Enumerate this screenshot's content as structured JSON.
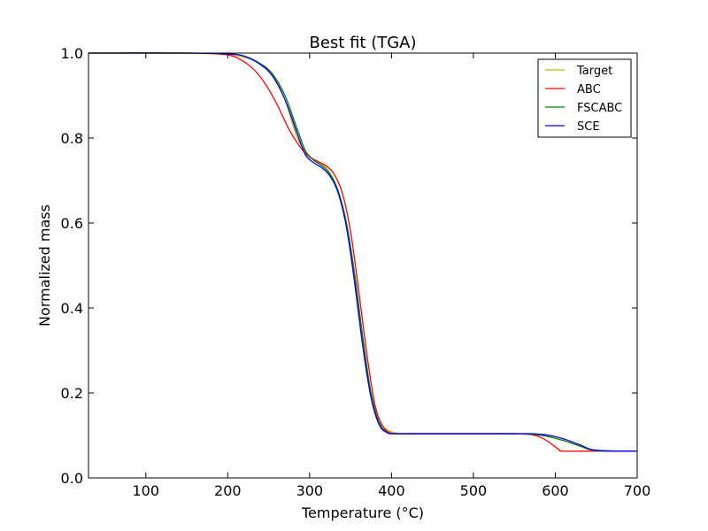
{
  "chart_data": {
    "type": "line",
    "title": "Best fit (TGA)",
    "xlabel": "Temperature (°C)",
    "ylabel": "Normalized mass",
    "xlim": [
      30,
      700
    ],
    "ylim": [
      0.0,
      1.0
    ],
    "xticks": [
      100,
      200,
      300,
      400,
      500,
      600,
      700
    ],
    "yticks": [
      0.0,
      0.2,
      0.4,
      0.6,
      0.8,
      1.0
    ],
    "xtick_labels": [
      "100",
      "200",
      "300",
      "400",
      "500",
      "600",
      "700"
    ],
    "ytick_labels": [
      "0.0",
      "0.2",
      "0.4",
      "0.6",
      "0.8",
      "1.0"
    ],
    "grid": false,
    "legend_position": "top-right",
    "series": [
      {
        "name": "Target",
        "color": "#c8b400",
        "x": [
          30,
          150,
          200,
          220,
          240,
          255,
          270,
          285,
          300,
          310,
          320,
          330,
          340,
          350,
          360,
          370,
          380,
          390,
          400,
          410,
          420,
          450,
          500,
          550,
          570,
          590,
          610,
          630,
          650,
          700
        ],
        "y": [
          1.0,
          1.0,
          0.996,
          0.99,
          0.975,
          0.95,
          0.89,
          0.8,
          0.755,
          0.745,
          0.73,
          0.7,
          0.64,
          0.53,
          0.38,
          0.24,
          0.15,
          0.12,
          0.108,
          0.105,
          0.104,
          0.104,
          0.104,
          0.104,
          0.103,
          0.098,
          0.088,
          0.075,
          0.064,
          0.063
        ]
      },
      {
        "name": "ABC",
        "color": "#ff0000",
        "x": [
          30,
          150,
          190,
          210,
          230,
          245,
          260,
          275,
          290,
          300,
          310,
          320,
          330,
          340,
          350,
          360,
          370,
          380,
          390,
          400,
          410,
          450,
          500,
          550,
          570,
          580,
          590,
          600,
          605,
          610,
          650,
          700
        ],
        "y": [
          1.0,
          1.0,
          0.998,
          0.99,
          0.965,
          0.93,
          0.88,
          0.82,
          0.775,
          0.755,
          0.745,
          0.735,
          0.715,
          0.67,
          0.58,
          0.44,
          0.29,
          0.17,
          0.12,
          0.105,
          0.104,
          0.104,
          0.104,
          0.104,
          0.102,
          0.097,
          0.087,
          0.073,
          0.066,
          0.063,
          0.063,
          0.063
        ]
      },
      {
        "name": "FSCABC",
        "color": "#008000",
        "x": [
          30,
          150,
          200,
          220,
          240,
          255,
          270,
          285,
          295,
          305,
          315,
          325,
          335,
          345,
          355,
          365,
          375,
          385,
          395,
          405,
          420,
          450,
          500,
          550,
          570,
          590,
          610,
          630,
          650,
          700
        ],
        "y": [
          1.0,
          1.0,
          0.998,
          0.993,
          0.975,
          0.95,
          0.9,
          0.82,
          0.77,
          0.748,
          0.735,
          0.715,
          0.675,
          0.6,
          0.48,
          0.33,
          0.2,
          0.13,
          0.107,
          0.104,
          0.104,
          0.104,
          0.104,
          0.104,
          0.103,
          0.098,
          0.088,
          0.075,
          0.064,
          0.063
        ]
      },
      {
        "name": "SCE",
        "color": "#0000ff",
        "x": [
          30,
          150,
          200,
          220,
          240,
          255,
          270,
          285,
          295,
          305,
          315,
          325,
          335,
          345,
          355,
          365,
          375,
          385,
          395,
          405,
          420,
          450,
          500,
          550,
          570,
          590,
          610,
          630,
          650,
          700
        ],
        "y": [
          1.0,
          1.0,
          0.998,
          0.993,
          0.973,
          0.945,
          0.89,
          0.81,
          0.76,
          0.742,
          0.73,
          0.71,
          0.67,
          0.59,
          0.46,
          0.31,
          0.19,
          0.125,
          0.106,
          0.104,
          0.104,
          0.104,
          0.104,
          0.104,
          0.104,
          0.101,
          0.092,
          0.078,
          0.065,
          0.063
        ]
      }
    ]
  }
}
